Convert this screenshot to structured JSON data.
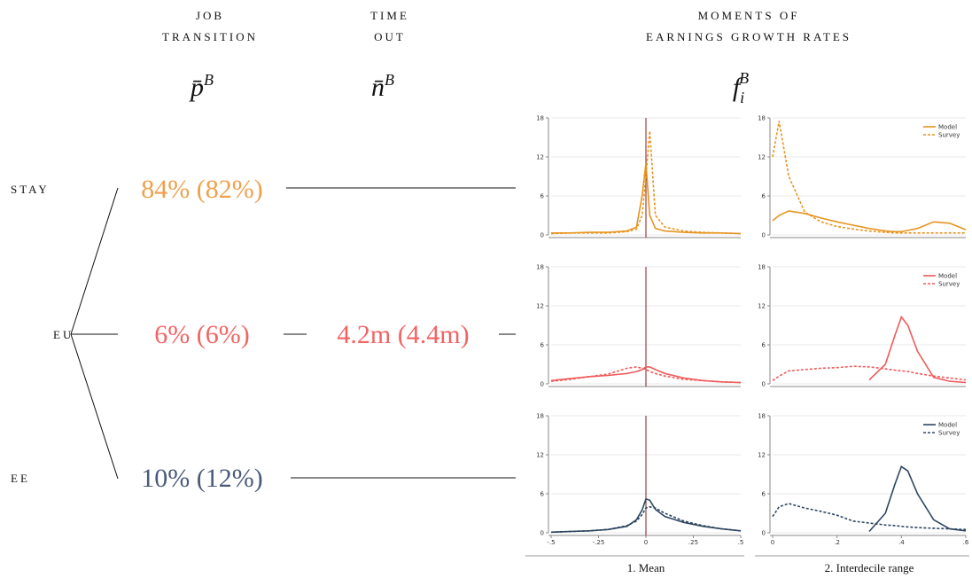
{
  "headers": [
    {
      "lines": [
        "JOB",
        "TRANSITION"
      ],
      "symbol": "p̄",
      "superscript": "B"
    },
    {
      "lines": [
        "TIME",
        "OUT"
      ],
      "symbol": "n̄",
      "superscript": "B"
    },
    {
      "lines": [
        "MOMENTS OF",
        "EARNINGS GROWTH RATES"
      ],
      "symbol": "f",
      "subscript": "i",
      "superscript": "B"
    }
  ],
  "rows": [
    {
      "label": "STAY",
      "transition": "84% (82%)",
      "color": "#f0a04b"
    },
    {
      "label": "EU",
      "transition": "6% (6%)",
      "time_out": "4.2m (4.4m)",
      "color": "#f26464"
    },
    {
      "label": "EE",
      "transition": "10% (12%)",
      "color": "#4a5a78"
    }
  ],
  "chart_data": [
    {
      "type": "line",
      "x": [
        -0.5,
        -0.4,
        -0.3,
        -0.2,
        -0.1,
        -0.05,
        -0.02,
        0,
        0.02,
        0.05,
        0.1,
        0.2,
        0.3,
        0.4,
        0.5
      ],
      "xlim": [
        -0.5,
        0.5
      ],
      "ylim": [
        0,
        18
      ],
      "yticks": [
        0,
        6,
        12,
        18
      ],
      "grid": true,
      "reference_line": 0,
      "reference_color": "#8b1a1a",
      "series": [
        {
          "name": "Model",
          "color": "#e69420",
          "dashed": false,
          "values": [
            0.3,
            0.3,
            0.4,
            0.4,
            0.6,
            1.2,
            6,
            11,
            3,
            1,
            0.6,
            0.4,
            0.3,
            0.3,
            0.2
          ]
        },
        {
          "name": "Survey",
          "color": "#e69420",
          "dashed": true,
          "values": [
            0.2,
            0.3,
            0.3,
            0.3,
            0.5,
            0.9,
            3,
            9,
            16,
            3,
            1.2,
            0.6,
            0.4,
            0.3,
            0.2
          ]
        }
      ]
    },
    {
      "type": "line",
      "x": [
        0,
        0.02,
        0.05,
        0.1,
        0.15,
        0.2,
        0.25,
        0.3,
        0.35,
        0.38,
        0.4,
        0.42,
        0.45,
        0.5,
        0.55,
        0.6
      ],
      "xlim": [
        0,
        0.6
      ],
      "ylim": [
        0,
        18
      ],
      "yticks": [
        0,
        6,
        12,
        18
      ],
      "grid": true,
      "legend": "top-right",
      "series": [
        {
          "name": "Model",
          "color": "#e69420",
          "dashed": false,
          "values": [
            2.2,
            3,
            3.7,
            3.3,
            2.6,
            2,
            1.5,
            1,
            0.6,
            0.5,
            0.5,
            0.7,
            1,
            2,
            1.8,
            0.8
          ]
        },
        {
          "name": "Survey",
          "color": "#e69420",
          "dashed": true,
          "values": [
            12,
            17.5,
            9,
            3.5,
            2,
            1.3,
            0.9,
            0.6,
            0.4,
            0.3,
            0.3,
            0.3,
            0.3,
            0.3,
            0.3,
            0.3
          ]
        }
      ]
    },
    {
      "type": "line",
      "x": [
        -0.5,
        -0.4,
        -0.3,
        -0.2,
        -0.1,
        -0.05,
        -0.02,
        0,
        0.02,
        0.05,
        0.1,
        0.2,
        0.3,
        0.4,
        0.5
      ],
      "xlim": [
        -0.5,
        0.5
      ],
      "ylim": [
        0,
        18
      ],
      "yticks": [
        0,
        6,
        12,
        18
      ],
      "grid": true,
      "reference_line": 0,
      "reference_color": "#8b1a1a",
      "series": [
        {
          "name": "Model",
          "color": "#f05a5a",
          "dashed": false,
          "values": [
            0.5,
            0.8,
            1.1,
            1.3,
            1.6,
            1.9,
            2.2,
            2.6,
            2.6,
            2.2,
            1.6,
            0.9,
            0.5,
            0.3,
            0.2
          ]
        },
        {
          "name": "Survey",
          "color": "#f05a5a",
          "dashed": true,
          "values": [
            0.4,
            0.7,
            1.1,
            1.5,
            2.4,
            2.6,
            2.4,
            2.2,
            1.9,
            1.6,
            1.2,
            0.7,
            0.5,
            0.3,
            0.2
          ]
        }
      ]
    },
    {
      "type": "line",
      "x": [
        0,
        0.02,
        0.05,
        0.1,
        0.15,
        0.2,
        0.25,
        0.3,
        0.35,
        0.38,
        0.4,
        0.42,
        0.45,
        0.5,
        0.55,
        0.6
      ],
      "xlim": [
        0,
        0.6
      ],
      "ylim": [
        0,
        18
      ],
      "yticks": [
        0,
        6,
        12,
        18
      ],
      "grid": true,
      "legend": "top-right",
      "series": [
        {
          "name": "Model",
          "color": "#f05a5a",
          "dashed": false,
          "values": [
            null,
            null,
            null,
            null,
            null,
            null,
            null,
            0.6,
            3,
            7.5,
            10.3,
            9,
            5,
            1,
            0.4,
            0.2
          ]
        },
        {
          "name": "Survey",
          "color": "#f05a5a",
          "dashed": true,
          "values": [
            0.5,
            1.2,
            2,
            2.2,
            2.4,
            2.5,
            2.7,
            2.6,
            2.3,
            2.1,
            2,
            1.9,
            1.6,
            1.2,
            0.9,
            0.6
          ]
        }
      ]
    },
    {
      "type": "line",
      "x": [
        -0.5,
        -0.4,
        -0.3,
        -0.2,
        -0.1,
        -0.05,
        -0.02,
        0,
        0.02,
        0.05,
        0.1,
        0.2,
        0.3,
        0.4,
        0.5
      ],
      "xlim": [
        -0.5,
        0.5
      ],
      "ylim": [
        0,
        18
      ],
      "yticks": [
        0,
        6,
        12,
        18
      ],
      "grid": true,
      "reference_line": 0,
      "reference_color": "#8b1a1a",
      "xticks": [
        {
          "value": -0.5,
          "label": "-.5"
        },
        {
          "value": -0.25,
          "label": "-.25"
        },
        0,
        {
          "value": 0.25,
          "label": ".25"
        },
        {
          "value": 0.5,
          "label": ".5"
        }
      ],
      "xlabel": "1. Mean",
      "series": [
        {
          "name": "Model",
          "color": "#2e4660",
          "dashed": false,
          "values": [
            0.1,
            0.2,
            0.3,
            0.5,
            1,
            2,
            3.5,
            5.2,
            5,
            3.6,
            2.5,
            1.6,
            1,
            0.6,
            0.3
          ]
        },
        {
          "name": "Survey",
          "color": "#2e4660",
          "dashed": true,
          "values": [
            0.1,
            0.2,
            0.3,
            0.5,
            1.1,
            1.8,
            2.8,
            3.8,
            4,
            3.8,
            3,
            1.8,
            1.1,
            0.6,
            0.3
          ]
        }
      ]
    },
    {
      "type": "line",
      "x": [
        0,
        0.02,
        0.05,
        0.1,
        0.15,
        0.2,
        0.25,
        0.3,
        0.35,
        0.38,
        0.4,
        0.42,
        0.45,
        0.5,
        0.55,
        0.6
      ],
      "xlim": [
        0,
        0.6
      ],
      "ylim": [
        0,
        18
      ],
      "yticks": [
        0,
        6,
        12,
        18
      ],
      "grid": true,
      "legend": "top-right",
      "xticks": [
        0,
        {
          "value": 0.2,
          "label": ".2"
        },
        {
          "value": 0.4,
          "label": ".4"
        },
        {
          "value": 0.6,
          "label": ".6"
        }
      ],
      "xlabel": "2. Interdecile range",
      "series": [
        {
          "name": "Model",
          "color": "#2e4660",
          "dashed": false,
          "values": [
            null,
            null,
            null,
            null,
            null,
            null,
            null,
            0.2,
            3,
            7.5,
            10.2,
            9.5,
            6,
            2,
            0.6,
            0.3
          ]
        },
        {
          "name": "Survey",
          "color": "#2e4660",
          "dashed": true,
          "values": [
            2.5,
            4,
            4.5,
            3.8,
            3.3,
            2.7,
            1.8,
            1.5,
            1.2,
            1.1,
            1,
            0.9,
            0.8,
            0.7,
            0.6,
            0.5
          ]
        }
      ]
    }
  ]
}
